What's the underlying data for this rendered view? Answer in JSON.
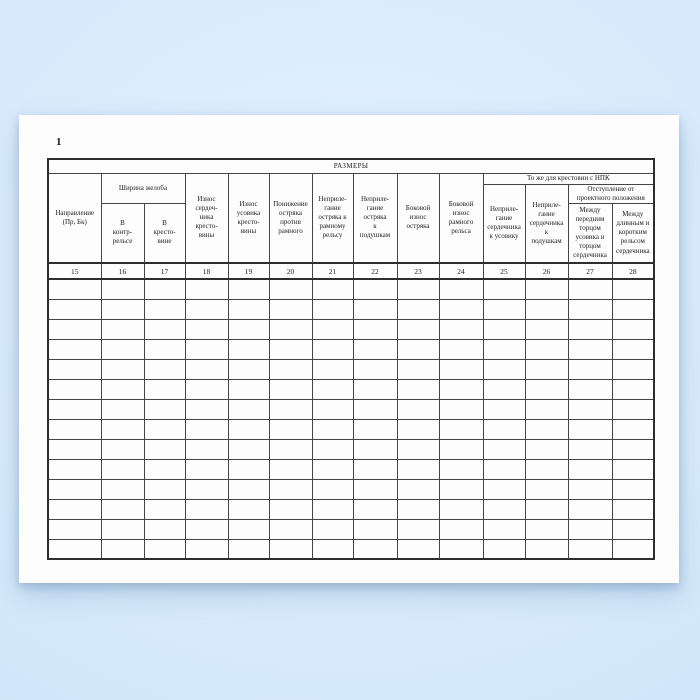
{
  "page": {
    "number": "1"
  },
  "form": {
    "section_title": "РАЗМЕРЫ",
    "group_headers": {
      "groove_width": "Ширина желоба",
      "same_for_npk": "То же для крестовин с НПК",
      "deviation": "Отступление от\nпроектного положения"
    },
    "columns": [
      {
        "num": "15",
        "label": "Направление\n(Пр, Бк)"
      },
      {
        "num": "16",
        "label": "В\nконтр-\nрельсе"
      },
      {
        "num": "17",
        "label": "В\nкресто-\nвине"
      },
      {
        "num": "18",
        "label": "Износ\nсердеч-\nника\nкресто-\nвины"
      },
      {
        "num": "19",
        "label": "Износ\nусовика\nкресто-\nвины"
      },
      {
        "num": "20",
        "label": "Понижение\nостряка\nпротив\nрамного"
      },
      {
        "num": "21",
        "label": "Неприле-\nгание\nостряка к\nрамному\nрельсу"
      },
      {
        "num": "22",
        "label": "Неприле-\nгание\nостряка\nк\nподушкам"
      },
      {
        "num": "23",
        "label": "Боковой\nизнос\nостряка"
      },
      {
        "num": "24",
        "label": "Боковой\nизнос\nрамного\nрельса"
      },
      {
        "num": "25",
        "label": "Неприле-\nгание\nсердечника\nк усовику"
      },
      {
        "num": "26",
        "label": "Неприле-\nгание\nсердечника\nк\nподушкам"
      },
      {
        "num": "27",
        "label": "Между\nпередним\nторцом\nусовика и\nторцом\nсердечника"
      },
      {
        "num": "28",
        "label": "Между\nдлинным и\nкоротким\nрельсом\nсердечника"
      }
    ],
    "body_row_count": 14,
    "empty_cell_value": ""
  },
  "colors": {
    "background_center": "#e3f1fe",
    "background_edge": "#c3ddf5",
    "paper": "#fdfdfe",
    "grid_line": "#454545",
    "outer_border": "#2e2e2e",
    "text": "#1c1c1c"
  }
}
